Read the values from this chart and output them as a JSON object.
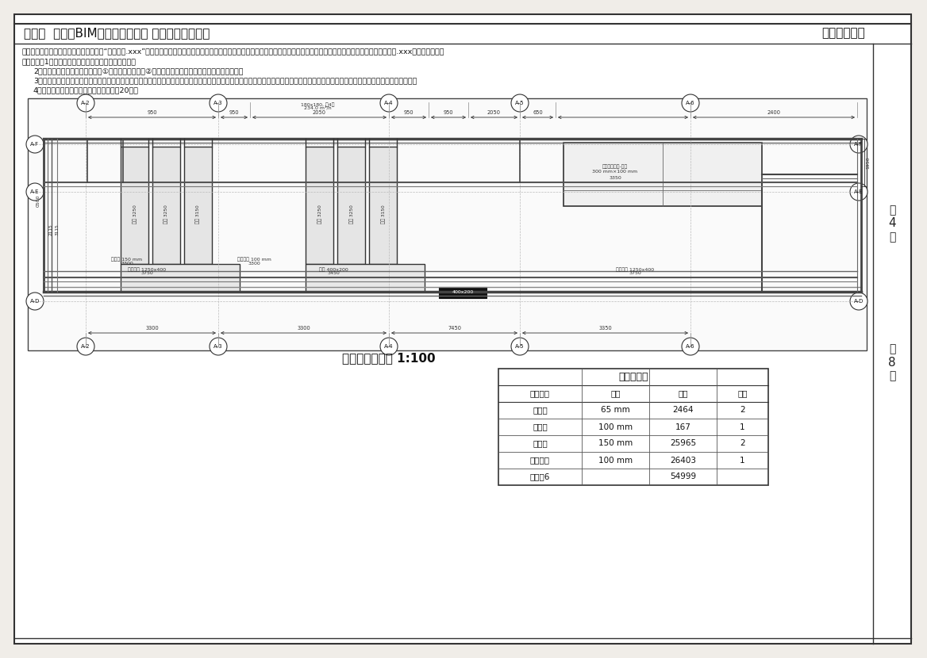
{
  "title_left": "第八期  「全国BIM技能等级考试」 二级（设备）试题",
  "title_right": "中国图学学会",
  "question_text": "四、参照下图新建机电专业模型，结果以“机电模型.xxx”为文件名保存在考生文件夹中。下图所注标高中除水管为中心标高外，其余均为底标高，结构模型已随题给出（试题结构模型.xxx），链接即可。",
  "req_text_1": "具体要求：1、标注管线、体现系统类型、管径及高程。",
  "req_text_2": "2、解决图面中的两处碰撞问题（①风管与梁的碰撞；②桥架与水管的碰撞），保留翻弯处的剖面图。",
  "req_text_3": "3、利用过滤器，在三维视图中为风、水、电各专业管道（包含管件、管道附件）定义颜色：排烟管道黄色，送风管蓝色，桥架绿色，喷淋管紫色，消火栓管红色，各管道颜色均为实体填充。",
  "req_text_4": "4、创建如图所示的水管工程量统计表。（20分）",
  "drawing_title": "机电系统平面图 1:100",
  "table_title": "管道明细表",
  "table_headers": [
    "系统类型",
    "尺寸",
    "长度",
    "合计"
  ],
  "table_rows": [
    [
      "消火栓",
      "65 mm",
      "2464",
      "2"
    ],
    [
      "消火栓",
      "100 mm",
      "167",
      "1"
    ],
    [
      "消火栓",
      "150 mm",
      "25965",
      "2"
    ],
    [
      "自动喷淋",
      "100 mm",
      "26403",
      "1"
    ],
    [
      "总计：6",
      "",
      "54999",
      ""
    ]
  ],
  "bg_color": "#f0ede8",
  "border_color": "#333333",
  "line_color": "#555555",
  "text_color": "#222222",
  "grid_color": "#888888"
}
